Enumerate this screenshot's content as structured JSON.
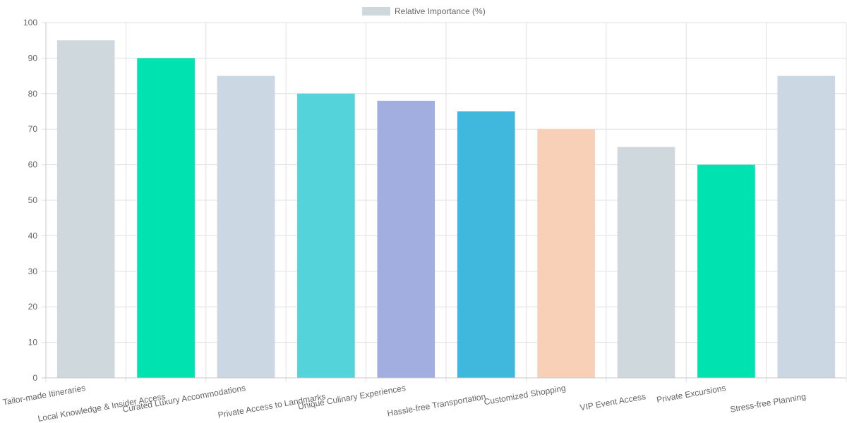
{
  "chart_data": {
    "type": "bar",
    "title": "",
    "xlabel": "",
    "ylabel": "",
    "ylim": [
      0,
      100
    ],
    "y_ticks": [
      0,
      10,
      20,
      30,
      40,
      50,
      60,
      70,
      80,
      90,
      100
    ],
    "grid": true,
    "legend": {
      "position": "top-center",
      "entries": [
        {
          "label": "Relative Importance (%)",
          "color": "#cfd8dc"
        }
      ]
    },
    "categories": [
      "Tailor-made Itineraries",
      "Local Knowledge & Insider Access",
      "Curated Luxury Accommodations",
      "Private Access to Landmarks",
      "Unique Culinary Experiences",
      "Hassle-free Transportation",
      "Customized Shopping",
      "VIP Event Access",
      "Private Excursions",
      "Stress-free Planning"
    ],
    "series": [
      {
        "name": "Relative Importance (%)",
        "values": [
          95,
          90,
          85,
          80,
          78,
          75,
          70,
          65,
          60,
          85
        ],
        "colors": [
          "#cfd8dc",
          "#00e3b0",
          "#cbd8e4",
          "#54d4da",
          "#a2ade0",
          "#40b8de",
          "#f8d0b8",
          "#cfd8dc",
          "#00e3b0",
          "#cbd8e4"
        ]
      }
    ]
  }
}
